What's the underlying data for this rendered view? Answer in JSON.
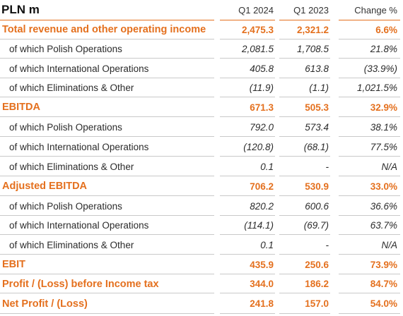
{
  "header": {
    "title": "PLN m",
    "col1": "Q1 2024",
    "col2": "Q1 2023",
    "col3": "Change %"
  },
  "rows": [
    {
      "type": "major",
      "label": "Total revenue and other operating income",
      "v1": "2,475.3",
      "v2": "2,321.2",
      "v3": "6.6%"
    },
    {
      "type": "sub",
      "label": "of which Polish Operations",
      "v1": "2,081.5",
      "v2": "1,708.5",
      "v3": "21.8%"
    },
    {
      "type": "sub",
      "label": "of which International Operations",
      "v1": "405.8",
      "v2": "613.8",
      "v3": "(33.9%)"
    },
    {
      "type": "sub",
      "label": "of which Eliminations & Other",
      "v1": "(11.9)",
      "v2": "(1.1)",
      "v3": "1,021.5%"
    },
    {
      "type": "major",
      "label": "EBITDA",
      "v1": "671.3",
      "v2": "505.3",
      "v3": "32.9%"
    },
    {
      "type": "sub",
      "label": "of which Polish Operations",
      "v1": "792.0",
      "v2": "573.4",
      "v3": "38.1%"
    },
    {
      "type": "sub",
      "label": "of which International Operations",
      "v1": "(120.8)",
      "v2": "(68.1)",
      "v3": "77.5%"
    },
    {
      "type": "sub",
      "label": "of which Eliminations & Other",
      "v1": "0.1",
      "v2": "-",
      "v3": "N/A"
    },
    {
      "type": "major",
      "label": "Adjusted EBITDA",
      "v1": "706.2",
      "v2": "530.9",
      "v3": "33.0%"
    },
    {
      "type": "sub",
      "label": "of which Polish Operations",
      "v1": "820.2",
      "v2": "600.6",
      "v3": "36.6%"
    },
    {
      "type": "sub",
      "label": "of which International Operations",
      "v1": "(114.1)",
      "v2": "(69.7)",
      "v3": "63.7%"
    },
    {
      "type": "sub",
      "label": "of which Eliminations & Other",
      "v1": "0.1",
      "v2": "-",
      "v3": "N/A"
    },
    {
      "type": "major",
      "label": "EBIT",
      "v1": "435.9",
      "v2": "250.6",
      "v3": "73.9%"
    },
    {
      "type": "major",
      "label": "Profit / (Loss) before Income tax",
      "v1": "344.0",
      "v2": "186.2",
      "v3": "84.7%"
    },
    {
      "type": "major",
      "label": "Net Profit / (Loss)",
      "v1": "241.8",
      "v2": "157.0",
      "v3": "54.0%"
    }
  ],
  "colors": {
    "accent": "#e4701e",
    "text": "#2b2b2b",
    "rule": "#c9c9c9"
  }
}
